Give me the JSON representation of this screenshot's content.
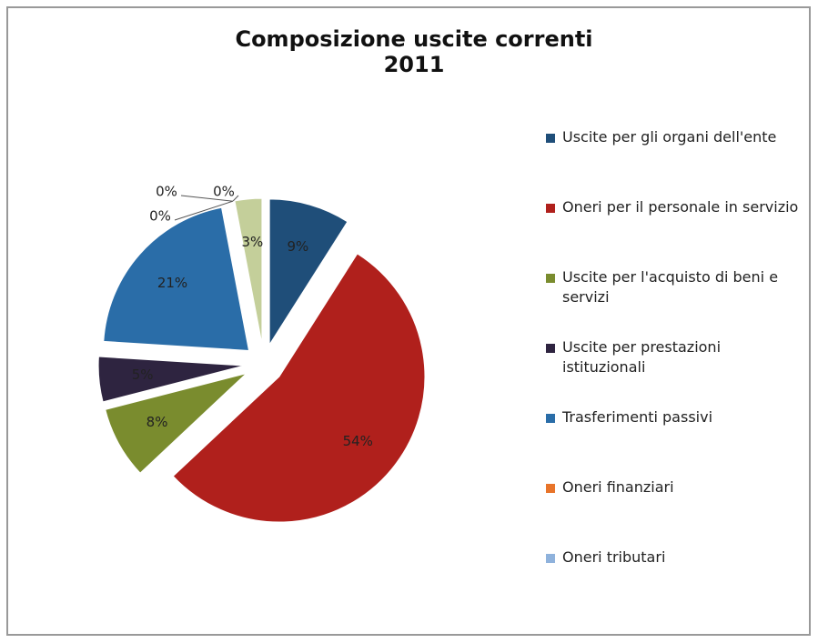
{
  "chart_data": {
    "type": "pie",
    "title": "Composizione uscite correnti",
    "subtitle": "2011",
    "categories": [
      "Uscite per gli organi dell'ente",
      "Oneri per il personale in servizio",
      "Uscite per l'acquisto di beni e servizi",
      "Uscite per prestazioni istituzionali",
      "Trasferimenti passivi",
      "Oneri finanziari",
      "Oneri tributari",
      null,
      null
    ],
    "values": [
      9,
      54,
      8,
      5,
      21,
      0,
      0,
      0,
      3
    ],
    "value_labels": [
      "9%",
      "54%",
      "8%",
      "5%",
      "21%",
      "0%",
      "0%",
      "0%",
      "3%"
    ],
    "colors": [
      "#1f4e79",
      "#b0201c",
      "#7a8c2e",
      "#2e2440",
      "#2a6da8",
      "#e8742a",
      "#8fb2dc",
      "#b8b0d0",
      "#c4cf9a"
    ],
    "legend": "right"
  }
}
